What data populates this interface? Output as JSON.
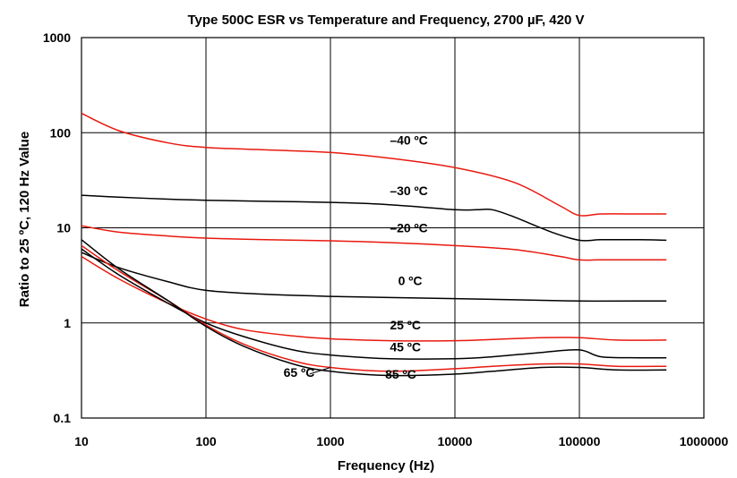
{
  "chart_data": {
    "type": "line",
    "title": "Type 500C ESR vs Temperature and Frequency, 2700 µF, 420 V",
    "xlabel": "Frequency (Hz)",
    "ylabel": "Ratio to 25 ºC, 120 Hz Value",
    "x_scale": "log",
    "y_scale": "log",
    "xlim": [
      10,
      1000000
    ],
    "ylim": [
      0.1,
      1000
    ],
    "x_ticks": [
      "10",
      "100",
      "1000",
      "10000",
      "100000",
      "1000000"
    ],
    "y_ticks": [
      "1000",
      "100",
      "10",
      "1",
      "0.1"
    ],
    "grid": true,
    "series": [
      {
        "name": "–40 ºC",
        "color": "#e8190e",
        "x": [
          10,
          20,
          50,
          100,
          300,
          1000,
          3000,
          10000,
          30000,
          70000,
          100000,
          150000,
          300000,
          500000
        ],
        "y": [
          160,
          105,
          78,
          70,
          66,
          62,
          54,
          43,
          30,
          17,
          13.5,
          14,
          14,
          14
        ]
      },
      {
        "name": "–30 ºC",
        "color": "#000000",
        "x": [
          10,
          20,
          50,
          100,
          300,
          1000,
          3000,
          10000,
          15000,
          20000,
          30000,
          60000,
          100000,
          150000,
          300000,
          500000
        ],
        "y": [
          22,
          21,
          20,
          19.5,
          19,
          18.5,
          17.5,
          15.5,
          15.5,
          15.5,
          13,
          9,
          7.4,
          7.5,
          7.5,
          7.4
        ]
      },
      {
        "name": "–20 ºC",
        "color": "#e8190e",
        "x": [
          10,
          20,
          50,
          100,
          300,
          1000,
          3000,
          10000,
          30000,
          70000,
          100000,
          150000,
          300000,
          500000
        ],
        "y": [
          10.5,
          9,
          8.2,
          7.8,
          7.5,
          7.3,
          7.0,
          6.5,
          5.9,
          5.0,
          4.6,
          4.6,
          4.6,
          4.6
        ]
      },
      {
        "name": "0 ºC",
        "color": "#000000",
        "x": [
          10,
          20,
          50,
          100,
          300,
          1000,
          3000,
          10000,
          30000,
          100000,
          300000,
          500000
        ],
        "y": [
          5.5,
          3.8,
          2.7,
          2.2,
          2.0,
          1.9,
          1.85,
          1.8,
          1.75,
          1.7,
          1.7,
          1.7
        ]
      },
      {
        "name": "25 ºC",
        "color": "#e8190e",
        "x": [
          10,
          20,
          50,
          100,
          200,
          500,
          1000,
          3000,
          10000,
          20000,
          50000,
          100000,
          200000,
          500000
        ],
        "y": [
          5.0,
          2.9,
          1.6,
          1.1,
          0.85,
          0.73,
          0.68,
          0.65,
          0.65,
          0.67,
          0.7,
          0.7,
          0.66,
          0.66
        ]
      },
      {
        "name": "45 ºC",
        "color": "#000000",
        "x": [
          10,
          20,
          50,
          100,
          200,
          500,
          1000,
          3000,
          10000,
          20000,
          50000,
          100000,
          150000,
          300000,
          500000
        ],
        "y": [
          6.0,
          3.2,
          1.6,
          1.0,
          0.72,
          0.52,
          0.46,
          0.42,
          0.42,
          0.44,
          0.49,
          0.52,
          0.44,
          0.43,
          0.43
        ]
      },
      {
        "name": "65 ºC",
        "color": "#e8190e",
        "x": [
          10,
          20,
          50,
          100,
          200,
          500,
          1000,
          3000,
          10000,
          20000,
          50000,
          100000,
          200000,
          500000
        ],
        "y": [
          6.5,
          3.5,
          1.7,
          0.95,
          0.6,
          0.4,
          0.34,
          0.31,
          0.33,
          0.35,
          0.37,
          0.37,
          0.35,
          0.35
        ]
      },
      {
        "name": "85 ºC",
        "color": "#000000",
        "x": [
          10,
          20,
          50,
          100,
          200,
          500,
          1000,
          3000,
          10000,
          20000,
          50000,
          100000,
          200000,
          500000
        ],
        "y": [
          7.5,
          3.7,
          1.7,
          0.92,
          0.57,
          0.37,
          0.31,
          0.28,
          0.29,
          0.31,
          0.34,
          0.34,
          0.32,
          0.32
        ]
      }
    ],
    "curve_labels": [
      {
        "text": "–40 ºC",
        "x": 3000,
        "y": 75
      },
      {
        "text": "–30 ºC",
        "x": 3000,
        "y": 22
      },
      {
        "text": "–20 ºC",
        "x": 3000,
        "y": 9
      },
      {
        "text": "0 ºC",
        "x": 3500,
        "y": 2.5
      },
      {
        "text": "25 ºC",
        "x": 3000,
        "y": 0.85
      },
      {
        "text": "45 ºC",
        "x": 3000,
        "y": 0.5
      },
      {
        "text": "65 ºC",
        "x": 420,
        "y": 0.27
      },
      {
        "text": "85 ºC",
        "x": 2750,
        "y": 0.26
      }
    ]
  }
}
